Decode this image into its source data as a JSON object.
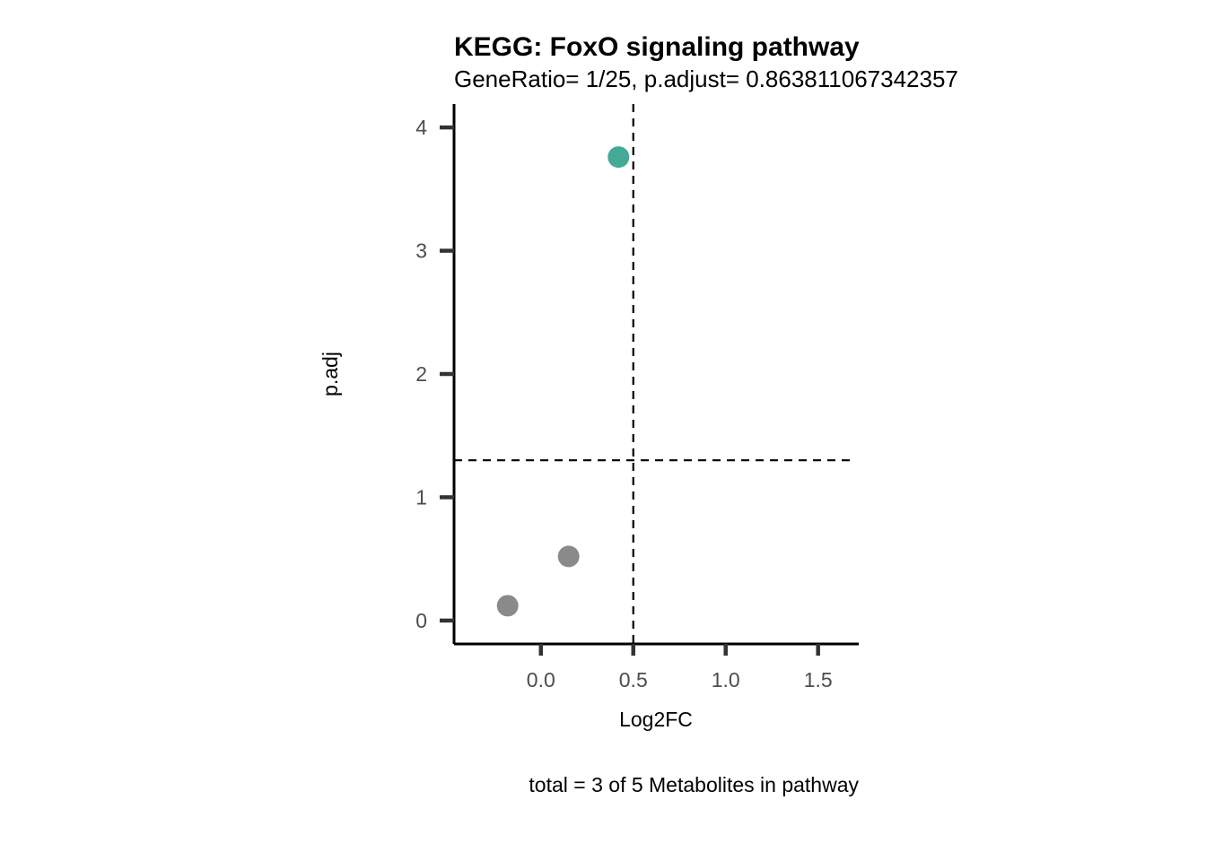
{
  "chart_data": {
    "type": "scatter",
    "title": "KEGG: FoxO signaling pathway",
    "subtitle": "GeneRatio= 1/25, p.adjust= 0.863811067342357",
    "xlabel": "Log2FC",
    "ylabel": "p.adj",
    "caption": "total = 3 of 5 Metabolites in pathway",
    "xlim": [
      -0.47,
      1.72
    ],
    "ylim": [
      -0.19,
      4.19
    ],
    "x_ticks": [
      0.0,
      0.5,
      1.0,
      1.5
    ],
    "x_tick_labels": [
      "0.0",
      "0.5",
      "1.0",
      "1.5"
    ],
    "y_ticks": [
      0,
      1,
      2,
      3,
      4
    ],
    "y_tick_labels": [
      "0",
      "1",
      "2",
      "3",
      "4"
    ],
    "reference_lines": {
      "vertical_x": 0.5,
      "horizontal_y": 1.3
    },
    "grid": false,
    "legend": "none",
    "points": [
      {
        "x": 0.42,
        "y": 3.76,
        "color": "#45a997"
      },
      {
        "x": 0.15,
        "y": 0.52,
        "color": "#8a8a8a"
      },
      {
        "x": -0.18,
        "y": 0.12,
        "color": "#8a8a8a"
      }
    ]
  }
}
